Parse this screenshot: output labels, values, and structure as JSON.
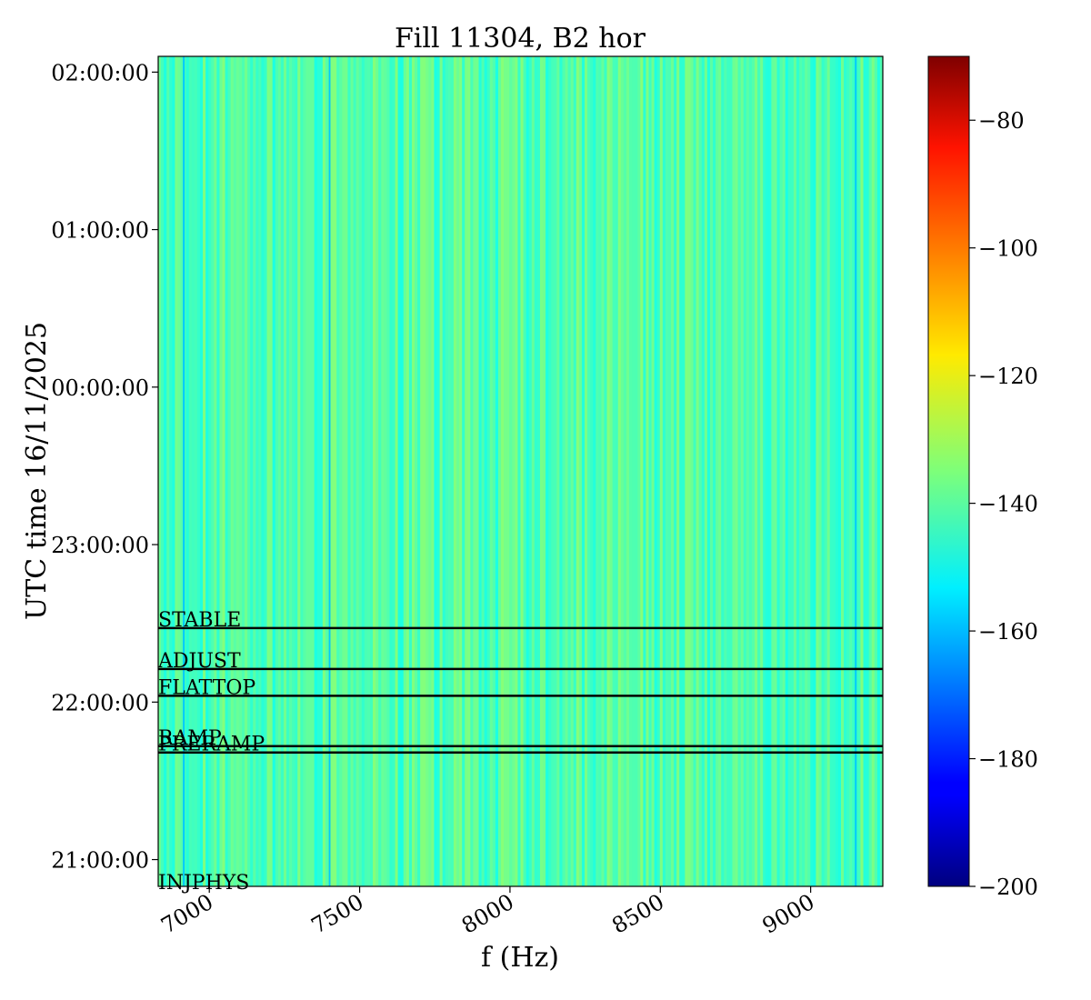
{
  "chart_data": {
    "type": "heatmap",
    "title": "Fill 11304, B2 hor",
    "xlabel": "f (Hz)",
    "ylabel": "UTC time 16/11/2025",
    "xlim": [
      6830,
      9240
    ],
    "x_ticks": [
      7000,
      7500,
      8000,
      8500,
      9000
    ],
    "x_tick_labels": [
      "7000",
      "7500",
      "8000",
      "8500",
      "9000"
    ],
    "y_ticks": [
      {
        "label": "21:00:00",
        "hours": 21.0
      },
      {
        "label": "22:00:00",
        "hours": 22.0
      },
      {
        "label": "23:00:00",
        "hours": 23.0
      },
      {
        "label": "00:00:00",
        "hours": 24.0
      },
      {
        "label": "01:00:00",
        "hours": 25.0
      },
      {
        "label": "02:00:00",
        "hours": 26.0
      }
    ],
    "ylim_hours": [
      20.83,
      26.1
    ],
    "colorbar": {
      "colormap": "jet",
      "range": [
        -200,
        -70
      ],
      "ticks": [
        -80,
        -100,
        -120,
        -140,
        -160,
        -180,
        -200
      ],
      "tick_labels": [
        "−80",
        "−100",
        "−120",
        "−140",
        "−160",
        "−180",
        "−200"
      ]
    },
    "value_range_note": "-140",
    "phase_markers": [
      {
        "label": "INJPHYS",
        "hours": 20.8
      },
      {
        "label": "PRERAMP",
        "hours": 21.68
      },
      {
        "label": "RAMP",
        "hours": 21.72
      },
      {
        "label": "FLATTOP",
        "hours": 22.04
      },
      {
        "label": "ADJUST",
        "hours": 22.21
      },
      {
        "label": "STABLE",
        "hours": 22.47
      }
    ],
    "strong_lines_hz": [
      6915,
      7400,
      9150
    ]
  }
}
